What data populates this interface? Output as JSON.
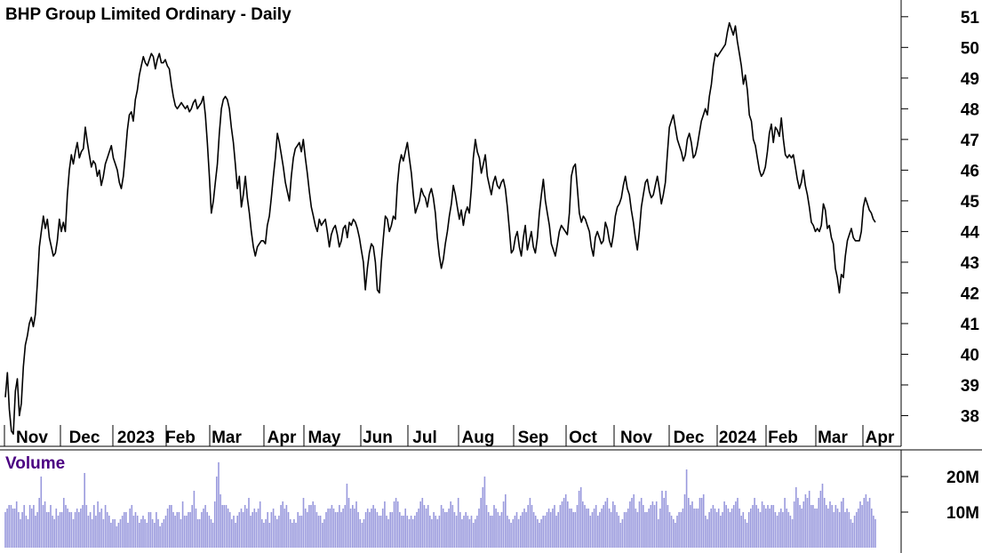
{
  "chart_data": [
    {
      "type": "line",
      "title": "BHP Group Limited Ordinary - Daily",
      "x_tick_labels": [
        "Nov",
        "Dec",
        "2023",
        "Feb",
        "Mar",
        "Apr",
        "May",
        "Jun",
        "Jul",
        "Aug",
        "Sep",
        "Oct",
        "Nov",
        "Dec",
        "2024",
        "Feb",
        "Mar",
        "Apr"
      ],
      "y_tick_labels": [
        "38",
        "39",
        "40",
        "41",
        "42",
        "43",
        "44",
        "45",
        "46",
        "47",
        "48",
        "49",
        "50",
        "51"
      ],
      "ylim": [
        37.0,
        51.4
      ],
      "grid": false,
      "line_color": "#000000",
      "series": [
        {
          "values": [
            38.6,
            39.4,
            38.2,
            37.5,
            37.4,
            38.8,
            39.2,
            38.0,
            38.4,
            39.6,
            40.3,
            40.6,
            41.0,
            41.2,
            40.9,
            41.3,
            42.3,
            43.5,
            44.0,
            44.5,
            44.1,
            44.4,
            43.8,
            43.5,
            43.2,
            43.3,
            43.7,
            44.4,
            44.0,
            44.3,
            44.0,
            45.2,
            46.0,
            46.5,
            46.2,
            46.6,
            46.9,
            46.4,
            46.6,
            46.7,
            47.4,
            46.9,
            46.5,
            46.1,
            46.3,
            46.2,
            45.8,
            46.0,
            45.5,
            45.8,
            46.2,
            46.4,
            46.6,
            46.8,
            46.4,
            46.2,
            46.0,
            45.6,
            45.4,
            45.8,
            46.5,
            47.3,
            47.8,
            47.9,
            47.6,
            48.3,
            48.6,
            49.1,
            49.4,
            49.7,
            49.5,
            49.4,
            49.6,
            49.8,
            49.7,
            49.3,
            49.6,
            49.8,
            49.5,
            49.5,
            49.6,
            49.4,
            49.3,
            48.8,
            48.4,
            48.1,
            48.0,
            48.1,
            48.2,
            48.1,
            48.0,
            48.1,
            47.9,
            48.0,
            48.2,
            48.3,
            48.0,
            48.1,
            48.2,
            48.4,
            47.8,
            46.9,
            45.8,
            44.6,
            45.0,
            45.6,
            46.2,
            47.2,
            48.0,
            48.3,
            48.4,
            48.3,
            48.0,
            47.4,
            46.9,
            46.2,
            45.4,
            45.8,
            44.8,
            45.2,
            45.8,
            45.1,
            44.6,
            44.0,
            43.5,
            43.2,
            43.5,
            43.6,
            43.7,
            43.7,
            43.6,
            44.2,
            44.5,
            45.1,
            45.8,
            46.4,
            47.2,
            46.9,
            46.5,
            46.1,
            45.6,
            45.3,
            45.0,
            45.8,
            46.4,
            46.7,
            46.8,
            46.9,
            46.6,
            47.0,
            46.4,
            45.9,
            45.3,
            44.8,
            44.5,
            44.2,
            44.0,
            44.4,
            44.2,
            44.3,
            44.4,
            44.0,
            43.5,
            43.9,
            44.1,
            44.2,
            43.9,
            43.5,
            43.7,
            44.1,
            44.2,
            43.8,
            44.3,
            44.2,
            44.4,
            44.3,
            44.1,
            43.8,
            43.4,
            43.0,
            42.1,
            42.8,
            43.3,
            43.6,
            43.5,
            43.0,
            42.1,
            42.0,
            43.0,
            43.8,
            44.5,
            44.4,
            44.0,
            44.2,
            44.5,
            44.4,
            45.5,
            46.2,
            46.5,
            46.3,
            46.6,
            46.9,
            46.4,
            45.9,
            45.2,
            44.6,
            44.8,
            45.0,
            45.4,
            45.2,
            45.1,
            44.8,
            45.2,
            45.4,
            45.1,
            44.6,
            43.8,
            43.2,
            42.8,
            43.1,
            43.6,
            44.0,
            44.5,
            44.9,
            45.5,
            45.2,
            44.8,
            44.4,
            44.7,
            44.2,
            44.6,
            44.8,
            44.6,
            45.4,
            46.4,
            47.0,
            46.6,
            46.4,
            45.9,
            46.2,
            46.5,
            45.8,
            45.5,
            45.2,
            45.6,
            45.8,
            45.5,
            45.4,
            45.6,
            45.7,
            45.4,
            44.8,
            44.1,
            43.3,
            43.4,
            43.8,
            44.0,
            43.5,
            43.2,
            43.8,
            44.2,
            43.4,
            43.7,
            44.0,
            43.5,
            43.3,
            43.8,
            44.6,
            45.2,
            45.7,
            45.0,
            44.6,
            44.2,
            43.6,
            43.4,
            43.2,
            43.6,
            44.0,
            44.2,
            44.1,
            44.0,
            43.9,
            44.6,
            45.8,
            46.1,
            46.2,
            45.4,
            44.6,
            44.3,
            44.5,
            44.4,
            44.2,
            44.0,
            43.5,
            43.2,
            43.8,
            44.0,
            43.8,
            43.6,
            43.7,
            44.3,
            44.1,
            43.7,
            43.5,
            43.9,
            44.5,
            44.8,
            44.9,
            45.1,
            45.5,
            45.8,
            45.4,
            45.2,
            44.7,
            44.3,
            43.8,
            43.4,
            44.0,
            44.8,
            45.2,
            45.6,
            45.7,
            45.3,
            45.1,
            45.2,
            45.5,
            45.8,
            45.4,
            44.9,
            45.2,
            45.6,
            46.5,
            47.4,
            47.6,
            47.8,
            47.4,
            47.0,
            46.8,
            46.6,
            46.3,
            46.5,
            47.0,
            47.2,
            46.9,
            46.4,
            46.5,
            46.8,
            47.2,
            47.6,
            47.8,
            48.0,
            47.8,
            48.4,
            48.8,
            49.4,
            49.8,
            49.7,
            49.8,
            49.9,
            50.0,
            50.1,
            50.5,
            50.8,
            50.6,
            50.4,
            50.7,
            50.2,
            49.8,
            49.4,
            48.8,
            49.1,
            48.6,
            47.8,
            47.6,
            47.0,
            46.8,
            46.4,
            46.0,
            45.8,
            45.9,
            46.1,
            46.6,
            47.2,
            47.5,
            46.9,
            47.4,
            47.3,
            47.1,
            47.7,
            47.0,
            46.5,
            46.4,
            46.5,
            46.4,
            46.5,
            46.1,
            45.7,
            45.4,
            45.6,
            46.0,
            45.5,
            45.2,
            44.8,
            44.3,
            44.2,
            44.0,
            44.1,
            44.0,
            44.2,
            44.9,
            44.7,
            44.1,
            44.2,
            43.8,
            43.6,
            42.8,
            42.5,
            42.0,
            42.6,
            42.5,
            43.2,
            43.7,
            43.9,
            44.1,
            43.8,
            43.7,
            43.7,
            43.7,
            44.0,
            44.8,
            45.1,
            44.9,
            44.7,
            44.6,
            44.4,
            44.3
          ]
        }
      ]
    },
    {
      "type": "bar",
      "title": "Volume",
      "y_tick_labels": [
        "20M",
        "10M"
      ],
      "ylim": [
        0,
        27
      ],
      "bar_color": "#9999dd",
      "series": [
        {
          "name": "Volume",
          "values": [
            10,
            11,
            12,
            12,
            11,
            11,
            13,
            10,
            8,
            10,
            12,
            9,
            8,
            12,
            11,
            12,
            9,
            10,
            14,
            20,
            12,
            13,
            10,
            10,
            12,
            9,
            8,
            11,
            9,
            10,
            10,
            14,
            12,
            11,
            10,
            10,
            8,
            10,
            11,
            10,
            11,
            12,
            21,
            12,
            9,
            10,
            8,
            12,
            9,
            13,
            10,
            11,
            8,
            12,
            10,
            9,
            7,
            8,
            8,
            6,
            7,
            8,
            9,
            10,
            10,
            7,
            11,
            12,
            9,
            10,
            9,
            7,
            8,
            9,
            8,
            7,
            10,
            10,
            8,
            7,
            10,
            8,
            6,
            7,
            8,
            9,
            11,
            12,
            12,
            10,
            9,
            10,
            10,
            8,
            13,
            9,
            9,
            10,
            10,
            12,
            16,
            11,
            8,
            8,
            10,
            11,
            12,
            10,
            9,
            8,
            7,
            13,
            20,
            24,
            15,
            12,
            12,
            12,
            11,
            10,
            8,
            9,
            7,
            9,
            10,
            11,
            10,
            12,
            11,
            14,
            9,
            10,
            11,
            10,
            11,
            13,
            8,
            7,
            8,
            10,
            7,
            10,
            11,
            9,
            8,
            9,
            12,
            13,
            11,
            12,
            10,
            8,
            7,
            8,
            7,
            10,
            9,
            9,
            14,
            11,
            10,
            12,
            12,
            13,
            12,
            10,
            9,
            9,
            7,
            8,
            10,
            11,
            11,
            12,
            11,
            10,
            10,
            12,
            10,
            11,
            12,
            18,
            14,
            11,
            12,
            11,
            13,
            10,
            8,
            7,
            8,
            10,
            11,
            10,
            11,
            12,
            11,
            10,
            9,
            9,
            11,
            13,
            9,
            8,
            10,
            10,
            13,
            14,
            13,
            10,
            9,
            9,
            11,
            9,
            8,
            9,
            8,
            9,
            10,
            11,
            13,
            14,
            12,
            11,
            12,
            9,
            8,
            10,
            9,
            8,
            9,
            12,
            11,
            10,
            10,
            11,
            13,
            12,
            10,
            9,
            14,
            10,
            8,
            9,
            10,
            9,
            8,
            9,
            7,
            8,
            9,
            11,
            14,
            17,
            20,
            12,
            10,
            9,
            9,
            12,
            11,
            10,
            9,
            10,
            13,
            15,
            9,
            8,
            7,
            8,
            9,
            10,
            8,
            9,
            10,
            11,
            10,
            12,
            14,
            12,
            10,
            9,
            8,
            7,
            8,
            9,
            9,
            10,
            11,
            10,
            11,
            12,
            9,
            10,
            12,
            13,
            14,
            15,
            13,
            11,
            11,
            10,
            10,
            12,
            16,
            17,
            13,
            12,
            11,
            11,
            9,
            10,
            11,
            12,
            9,
            10,
            11,
            12,
            13,
            14,
            11,
            10,
            13,
            12,
            10,
            9,
            7,
            8,
            10,
            10,
            11,
            13,
            14,
            15,
            11,
            10,
            13,
            14,
            12,
            10,
            10,
            11,
            12,
            13,
            12,
            13,
            8,
            11,
            16,
            14,
            16,
            12,
            10,
            9,
            8,
            7,
            9,
            10,
            10,
            11,
            15,
            22,
            14,
            12,
            13,
            11,
            11,
            11,
            14,
            14,
            15,
            9,
            8,
            10,
            11,
            12,
            11,
            10,
            11,
            9,
            10,
            13,
            12,
            11,
            10,
            11,
            12,
            13,
            14,
            11,
            9,
            10,
            8,
            7,
            10,
            11,
            12,
            14,
            12,
            11,
            10,
            13,
            12,
            11,
            12,
            11,
            12,
            12,
            10,
            9,
            10,
            11,
            10,
            14,
            11,
            10,
            9,
            8,
            13,
            17,
            14,
            12,
            11,
            13,
            15,
            14,
            16,
            12,
            12,
            11,
            11,
            14,
            16,
            18,
            14,
            12,
            11,
            13,
            12,
            10,
            12,
            11,
            10,
            13,
            14,
            10,
            11,
            10,
            8,
            7,
            9,
            10,
            11,
            13,
            12,
            14,
            15,
            13,
            14,
            11,
            9,
            8
          ]
        }
      ]
    }
  ]
}
